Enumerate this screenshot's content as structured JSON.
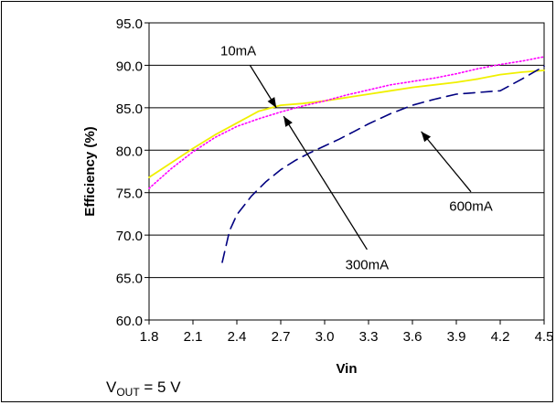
{
  "chart_data": {
    "type": "line",
    "xlabel": "Vin",
    "ylabel": "Efficiency (%)",
    "xlim": [
      1.8,
      4.5
    ],
    "ylim": [
      60.0,
      95.0
    ],
    "xticks": [
      "1.8",
      "2.1",
      "2.4",
      "2.7",
      "3.0",
      "3.3",
      "3.6",
      "3.9",
      "4.2",
      "4.5"
    ],
    "yticks": [
      "60.0",
      "65.0",
      "70.0",
      "75.0",
      "80.0",
      "85.0",
      "90.0",
      "95.0"
    ],
    "grid": "horizontal",
    "series": [
      {
        "name": "10mA",
        "color": "#F0F000",
        "style": "solid",
        "x": [
          1.8,
          1.95,
          2.1,
          2.25,
          2.4,
          2.55,
          2.7,
          2.85,
          3.0,
          3.15,
          3.3,
          3.45,
          3.6,
          3.75,
          3.9,
          4.05,
          4.2,
          4.35,
          4.5
        ],
        "y": [
          76.8,
          78.5,
          80.2,
          81.8,
          83.2,
          84.6,
          85.3,
          85.5,
          85.8,
          86.2,
          86.6,
          87.0,
          87.4,
          87.7,
          88.0,
          88.4,
          88.9,
          89.2,
          89.4
        ]
      },
      {
        "name": "300mA",
        "color": "#FF00FF",
        "style": "dotted",
        "x": [
          1.8,
          1.95,
          2.1,
          2.25,
          2.4,
          2.55,
          2.7,
          2.85,
          3.0,
          3.15,
          3.3,
          3.45,
          3.6,
          3.75,
          3.9,
          4.05,
          4.2,
          4.35,
          4.5
        ],
        "y": [
          75.5,
          77.8,
          79.8,
          81.5,
          82.8,
          83.7,
          84.5,
          85.2,
          85.8,
          86.5,
          87.1,
          87.7,
          88.1,
          88.5,
          89.0,
          89.6,
          90.1,
          90.5,
          91.0
        ]
      },
      {
        "name": "600mA",
        "color": "#000080",
        "style": "dashed",
        "x": [
          2.3,
          2.35,
          2.4,
          2.5,
          2.6,
          2.7,
          2.8,
          2.9,
          3.0,
          3.1,
          3.2,
          3.3,
          3.45,
          3.6,
          3.75,
          3.9,
          4.05,
          4.2,
          4.35,
          4.5
        ],
        "y": [
          66.8,
          70.5,
          72.4,
          74.6,
          76.3,
          77.7,
          78.8,
          79.7,
          80.5,
          81.3,
          82.2,
          83.1,
          84.3,
          85.3,
          86.0,
          86.6,
          86.8,
          87.0,
          88.4,
          89.9
        ]
      }
    ],
    "annotations": [
      {
        "text": "10mA",
        "series": "10mA",
        "label_at": [
          2.41,
          91.8
        ],
        "arrow_from": [
          2.49,
          90.0
        ],
        "arrow_to": [
          2.67,
          85.0
        ]
      },
      {
        "text": "300mA",
        "series": "300mA",
        "label_at": [
          3.29,
          66.6
        ],
        "arrow_from": [
          3.29,
          68.3
        ],
        "arrow_to": [
          2.72,
          84.0
        ]
      },
      {
        "text": "600mA",
        "series": "600mA",
        "label_at": [
          4.0,
          73.5
        ],
        "arrow_from": [
          4.0,
          75.1
        ],
        "arrow_to": [
          3.66,
          82.2
        ]
      }
    ]
  },
  "footnote": {
    "symbol": "V",
    "subscript": "OUT",
    "value": " = 5 V"
  }
}
